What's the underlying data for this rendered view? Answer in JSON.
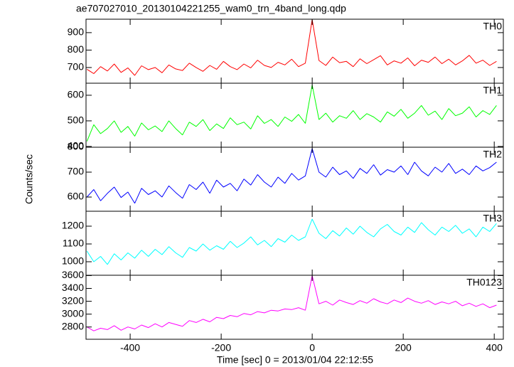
{
  "chart_data": {
    "type": "line",
    "title": "ae707027010_20130104221255_wam0_trn_4band_long.qdp",
    "ylabel": "Counts/sec",
    "xlabel": "Time [sec] 0 = 2013/01/04 22:12:55",
    "xlim": [
      -497,
      420
    ],
    "xticks": [
      -400,
      -200,
      0,
      200,
      400
    ],
    "x": [
      -495,
      -480,
      -465,
      -450,
      -435,
      -420,
      -405,
      -390,
      -375,
      -360,
      -345,
      -330,
      -315,
      -300,
      -285,
      -270,
      -255,
      -240,
      -225,
      -210,
      -195,
      -180,
      -165,
      -150,
      -135,
      -120,
      -105,
      -90,
      -75,
      -60,
      -45,
      -30,
      -15,
      0,
      15,
      30,
      45,
      60,
      75,
      90,
      105,
      120,
      135,
      150,
      165,
      180,
      195,
      210,
      225,
      240,
      255,
      270,
      285,
      300,
      315,
      330,
      345,
      360,
      375,
      390,
      405
    ],
    "series": [
      {
        "name": "TH0",
        "color": "#ff0000",
        "ylim": [
          610,
          977
        ],
        "yticks": [
          700,
          800,
          900
        ],
        "values": [
          690,
          665,
          705,
          680,
          720,
          672,
          698,
          655,
          710,
          688,
          700,
          670,
          715,
          692,
          683,
          725,
          700,
          678,
          712,
          690,
          735,
          705,
          688,
          720,
          698,
          742,
          712,
          700,
          730,
          715,
          748,
          705,
          725,
          975,
          740,
          712,
          760,
          728,
          735,
          705,
          750,
          722,
          745,
          768,
          715,
          738,
          725,
          755,
          710,
          742,
          730,
          760,
          722,
          748,
          715,
          738,
          770,
          725,
          742,
          712,
          735
        ]
      },
      {
        "name": "TH1",
        "color": "#00ff00",
        "ylim": [
          397,
          647
        ],
        "yticks": [
          400,
          500,
          600
        ],
        "values": [
          420,
          485,
          450,
          470,
          500,
          455,
          478,
          440,
          492,
          465,
          480,
          458,
          500,
          470,
          445,
          495,
          478,
          505,
          462,
          488,
          470,
          512,
          485,
          495,
          468,
          520,
          490,
          505,
          478,
          515,
          498,
          525,
          490,
          640,
          505,
          530,
          495,
          520,
          510,
          540,
          505,
          528,
          515,
          495,
          535,
          518,
          545,
          510,
          530,
          560,
          522,
          538,
          505,
          548,
          520,
          530,
          555,
          515,
          540,
          525,
          560
        ]
      },
      {
        "name": "TH2",
        "color": "#0000ff",
        "ylim": [
          543,
          800
        ],
        "yticks": [
          600,
          700,
          800
        ],
        "values": [
          600,
          630,
          585,
          615,
          640,
          598,
          620,
          575,
          635,
          610,
          625,
          600,
          645,
          618,
          595,
          650,
          630,
          660,
          615,
          668,
          640,
          655,
          625,
          672,
          648,
          690,
          660,
          640,
          680,
          655,
          695,
          668,
          685,
          795,
          700,
          680,
          720,
          690,
          705,
          675,
          715,
          695,
          730,
          688,
          710,
          700,
          725,
          690,
          740,
          705,
          685,
          720,
          700,
          735,
          695,
          712,
          690,
          725,
          705,
          718,
          740
        ]
      },
      {
        "name": "TH3",
        "color": "#00ffff",
        "ylim": [
          924,
          1284
        ],
        "yticks": [
          1000,
          1100,
          1200
        ],
        "values": [
          1060,
          1000,
          1030,
          985,
          1045,
          1010,
          1050,
          1020,
          1065,
          1030,
          1070,
          1040,
          1085,
          1050,
          1025,
          1080,
          1060,
          1100,
          1065,
          1090,
          1070,
          1115,
          1080,
          1105,
          1140,
          1095,
          1120,
          1085,
          1130,
          1110,
          1150,
          1120,
          1140,
          1240,
          1160,
          1130,
          1175,
          1145,
          1190,
          1155,
          1200,
          1165,
          1140,
          1185,
          1210,
          1170,
          1150,
          1195,
          1165,
          1220,
          1180,
          1150,
          1195,
          1170,
          1205,
          1160,
          1185,
          1140,
          1195,
          1170,
          1215
        ]
      },
      {
        "name": "TH0123",
        "color": "#ff00ff",
        "ylim": [
          2609,
          3605
        ],
        "yticks": [
          2800,
          3000,
          3200,
          3400,
          3600
        ],
        "values": [
          2800,
          2740,
          2780,
          2760,
          2820,
          2750,
          2800,
          2770,
          2830,
          2790,
          2850,
          2800,
          2870,
          2840,
          2810,
          2900,
          2870,
          2920,
          2880,
          2950,
          2930,
          2980,
          2960,
          3010,
          2990,
          3040,
          3020,
          3060,
          3050,
          3080,
          3070,
          3100,
          3060,
          3600,
          3160,
          3200,
          3140,
          3220,
          3180,
          3150,
          3210,
          3170,
          3240,
          3190,
          3160,
          3220,
          3180,
          3250,
          3200,
          3170,
          3210,
          3150,
          3190,
          3160,
          3200,
          3130,
          3170,
          3120,
          3160,
          3100,
          3140
        ]
      }
    ]
  }
}
